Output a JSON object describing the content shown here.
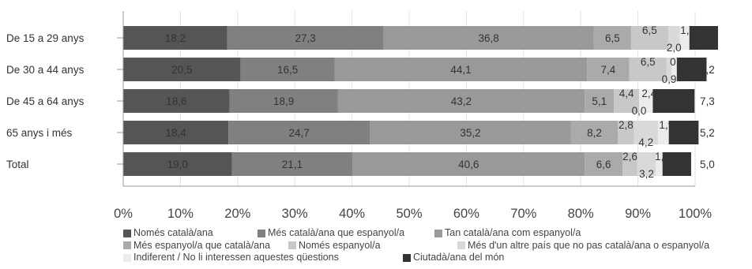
{
  "chart_data": {
    "type": "bar",
    "orientation": "horizontal",
    "stacked": true,
    "normalized": true,
    "categories": [
      "De 15 a 29 anys",
      "De 30 a 44 anys",
      "De 45 a 64 anys",
      "65 anys i més",
      "Total"
    ],
    "series": [
      {
        "name": "Només català/ana",
        "color": "#555555",
        "values": [
          18.2,
          20.5,
          18.6,
          18.4,
          19.0
        ]
      },
      {
        "name": "Més català/ana que espanyol/a",
        "color": "#808080",
        "values": [
          27.3,
          16.5,
          18.9,
          24.7,
          21.1
        ]
      },
      {
        "name": "Tan català/ana com espanyol/a",
        "color": "#999999",
        "values": [
          36.8,
          44.1,
          43.2,
          35.2,
          40.6
        ]
      },
      {
        "name": "Més espanyol/a que català/ana",
        "color": "#aaaaaa",
        "values": [
          6.5,
          7.4,
          5.1,
          8.2,
          6.6
        ]
      },
      {
        "name": "Només espanyol/a",
        "color": "#c8c8c8",
        "values": [
          6.5,
          6.5,
          4.4,
          2.8,
          2.6
        ]
      },
      {
        "name": "Més d'un altre país que no pas català/ana o espanyol/a",
        "color": "#d9d9d9",
        "values": [
          2.0,
          0.9,
          0.0,
          4.2,
          3.2
        ]
      },
      {
        "name": "Indiferent / No li interessen aquestes qüestions",
        "color": "#ececec",
        "values": [
          1.7,
          0.9,
          2.4,
          1.9,
          1.2
        ]
      },
      {
        "name": "Ciutadà/ana del món",
        "color": "#333333",
        "values": [
          5.0,
          5.2,
          7.3,
          5.2,
          5.0
        ]
      }
    ],
    "xlim": [
      0,
      100
    ],
    "xticks": [
      "0%",
      "10%",
      "20%",
      "30%",
      "40%",
      "50%",
      "60%",
      "70%",
      "80%",
      "90%",
      "100%"
    ],
    "grid": "vertical",
    "legend_position": "bottom"
  }
}
